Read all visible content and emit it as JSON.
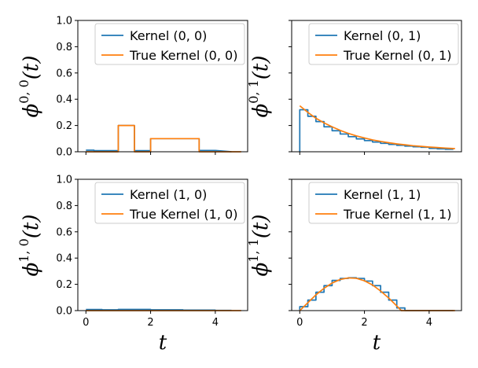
{
  "chart_data": [
    {
      "type": "line",
      "panel": "top-left",
      "ylabel": {
        "base": "ϕ",
        "sup": "0, 0",
        "tail": "(t)"
      },
      "xlabel": "",
      "xlim": [
        -0.25,
        5.0
      ],
      "ylim": [
        0,
        1.0
      ],
      "yticks": [
        "0.0",
        "0.2",
        "0.4",
        "0.6",
        "0.8",
        "1.0"
      ],
      "xticks": [],
      "legend_position": "top-right",
      "series": [
        {
          "name": "Kernel (0, 0)",
          "color": "#1f77b4",
          "x": [
            0,
            0.25,
            0.25,
            0.5,
            1.0,
            1.0,
            1.5,
            1.5,
            2.0,
            2.0,
            3.5,
            3.5,
            4.0,
            4.5
          ],
          "y": [
            0.012,
            0.012,
            0.008,
            0.008,
            0.008,
            0.2,
            0.2,
            0.008,
            0.008,
            0.1,
            0.1,
            0.01,
            0.01,
            0.0
          ]
        },
        {
          "name": "True Kernel (0, 0)",
          "color": "#ff7f0e",
          "x": [
            0,
            1.0,
            1.0,
            1.5,
            1.5,
            2.0,
            2.0,
            3.5,
            3.5,
            4.8
          ],
          "y": [
            0,
            0,
            0.2,
            0.2,
            0,
            0,
            0.1,
            0.1,
            0,
            0
          ]
        }
      ]
    },
    {
      "type": "line",
      "panel": "top-right",
      "ylabel": {
        "base": "ϕ",
        "sup": "0, 1",
        "tail": "(t)"
      },
      "xlabel": "",
      "xlim": [
        -0.25,
        5.0
      ],
      "ylim": [
        0,
        1.0
      ],
      "yticks": [],
      "xticks": [],
      "legend_position": "top-right",
      "series": [
        {
          "name": "Kernel (0, 1)",
          "color": "#1f77b4",
          "x": [
            0,
            0,
            0.25,
            0.25,
            0.5,
            0.5,
            0.75,
            0.75,
            1.0,
            1.0,
            1.25,
            1.25,
            1.5,
            1.5,
            1.75,
            1.75,
            2.0,
            2.0,
            2.25,
            2.25,
            2.5,
            2.5,
            2.75,
            2.75,
            3.0,
            3.0,
            3.25,
            3.25,
            3.5,
            3.5,
            3.75,
            3.75,
            4.0,
            4.0,
            4.25,
            4.25,
            4.5,
            4.5,
            4.75
          ],
          "y": [
            0,
            0.32,
            0.32,
            0.27,
            0.27,
            0.23,
            0.23,
            0.19,
            0.19,
            0.16,
            0.16,
            0.135,
            0.135,
            0.115,
            0.115,
            0.098,
            0.098,
            0.085,
            0.085,
            0.074,
            0.074,
            0.064,
            0.064,
            0.056,
            0.056,
            0.049,
            0.049,
            0.043,
            0.043,
            0.038,
            0.038,
            0.034,
            0.034,
            0.026,
            0.026,
            0.022,
            0.022,
            0.019,
            0.019
          ]
        },
        {
          "name": "True Kernel (0, 1)",
          "color": "#ff7f0e",
          "x": [
            0,
            0.25,
            0.5,
            0.75,
            1.0,
            1.25,
            1.5,
            1.75,
            2.0,
            2.25,
            2.5,
            2.75,
            3.0,
            3.25,
            3.5,
            3.75,
            4.0,
            4.25,
            4.5,
            4.8
          ],
          "y": [
            0.35,
            0.3,
            0.255,
            0.22,
            0.19,
            0.163,
            0.14,
            0.121,
            0.105,
            0.09,
            0.079,
            0.069,
            0.06,
            0.053,
            0.046,
            0.041,
            0.036,
            0.032,
            0.028,
            0.024
          ]
        }
      ]
    },
    {
      "type": "line",
      "panel": "bottom-left",
      "ylabel": {
        "base": "ϕ",
        "sup": "1, 0",
        "tail": "(t)"
      },
      "xlabel": "t",
      "xlim": [
        -0.25,
        5.0
      ],
      "ylim": [
        0,
        1.0
      ],
      "yticks": [
        "0.0",
        "0.2",
        "0.4",
        "0.6",
        "0.8",
        "1.0"
      ],
      "xticks": [
        "0",
        "2",
        "4"
      ],
      "legend_position": "top-right",
      "series": [
        {
          "name": "Kernel (1, 0)",
          "color": "#1f77b4",
          "x": [
            0,
            0.5,
            0.5,
            1.0,
            1.0,
            2.0,
            2.0,
            3.0,
            3.0,
            4.0,
            4.0,
            4.5
          ],
          "y": [
            0.008,
            0.008,
            0.006,
            0.006,
            0.009,
            0.009,
            0.006,
            0.006,
            0.004,
            0.004,
            0.002,
            0.002
          ]
        },
        {
          "name": "True Kernel (1, 0)",
          "color": "#ff7f0e",
          "x": [
            0,
            4.8
          ],
          "y": [
            0,
            0
          ]
        }
      ]
    },
    {
      "type": "line",
      "panel": "bottom-right",
      "ylabel": {
        "base": "ϕ",
        "sup": "1, 1",
        "tail": "(t)"
      },
      "xlabel": "t",
      "xlim": [
        -0.25,
        5.0
      ],
      "ylim": [
        0,
        1.0
      ],
      "yticks": [],
      "xticks": [
        "0",
        "2",
        "4"
      ],
      "legend_position": "top-right",
      "series": [
        {
          "name": "Kernel (1, 1)",
          "color": "#1f77b4",
          "x": [
            0,
            0,
            0.25,
            0.25,
            0.5,
            0.5,
            0.75,
            0.75,
            1.0,
            1.0,
            1.25,
            1.25,
            1.5,
            1.5,
            1.75,
            1.75,
            2.0,
            2.0,
            2.25,
            2.25,
            2.5,
            2.5,
            2.75,
            2.75,
            3.0,
            3.0,
            3.25,
            3.25,
            4.75
          ],
          "y": [
            0,
            0.03,
            0.03,
            0.08,
            0.08,
            0.14,
            0.14,
            0.19,
            0.19,
            0.23,
            0.23,
            0.245,
            0.245,
            0.25,
            0.25,
            0.245,
            0.245,
            0.225,
            0.225,
            0.19,
            0.19,
            0.14,
            0.14,
            0.08,
            0.08,
            0.02,
            0.02,
            0.0,
            0.0
          ]
        },
        {
          "name": "True Kernel (1, 1)",
          "color": "#ff7f0e",
          "x": [
            0,
            0.25,
            0.5,
            0.75,
            1.0,
            1.25,
            1.5,
            1.75,
            2.0,
            2.25,
            2.5,
            2.75,
            3.0,
            3.14,
            3.5,
            4.8
          ],
          "y": [
            0,
            0.06,
            0.12,
            0.17,
            0.21,
            0.237,
            0.249,
            0.246,
            0.227,
            0.195,
            0.149,
            0.096,
            0.035,
            0.0,
            0.0,
            0.0
          ]
        }
      ]
    }
  ]
}
